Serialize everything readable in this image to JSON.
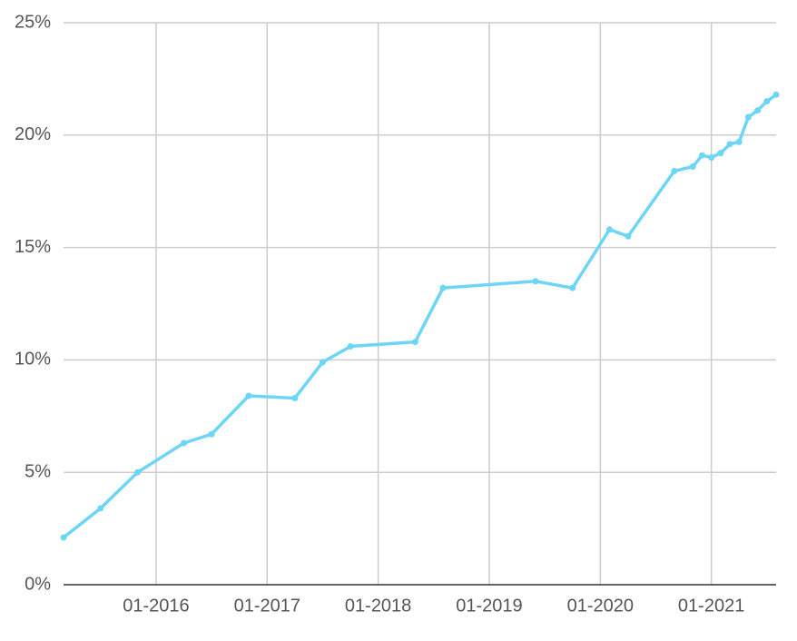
{
  "chart_data": {
    "type": "line",
    "x": [
      "2015-03",
      "2015-07",
      "2015-11",
      "2016-04",
      "2016-07",
      "2016-11",
      "2017-04",
      "2017-07",
      "2017-10",
      "2018-05",
      "2018-08",
      "2019-06",
      "2019-10",
      "2020-02",
      "2020-04",
      "2020-09",
      "2020-11",
      "2020-12",
      "2021-01",
      "2021-02",
      "2021-03",
      "2021-04",
      "2021-05",
      "2021-06",
      "2021-07",
      "2021-08"
    ],
    "series": [
      {
        "color": "#6dd5f5",
        "values": [
          2.1,
          3.4,
          5.0,
          6.3,
          6.7,
          8.4,
          8.3,
          9.9,
          10.6,
          10.8,
          13.2,
          13.5,
          13.2,
          15.8,
          15.5,
          18.4,
          18.6,
          19.1,
          19.0,
          19.2,
          19.6,
          19.7,
          20.8,
          21.1,
          21.5,
          21.8
        ]
      }
    ],
    "xlim": [
      "2015-03",
      "2021-08"
    ],
    "xticks": [
      {
        "value": "2016-01",
        "label": "01-2016"
      },
      {
        "value": "2017-01",
        "label": "01-2017"
      },
      {
        "value": "2018-01",
        "label": "01-2018"
      },
      {
        "value": "2019-01",
        "label": "01-2019"
      },
      {
        "value": "2020-01",
        "label": "01-2020"
      },
      {
        "value": "2021-01",
        "label": "01-2021"
      }
    ],
    "ylim": [
      0,
      25
    ],
    "yticks": [
      {
        "value": 0,
        "label": "0%"
      },
      {
        "value": 5,
        "label": "5%"
      },
      {
        "value": 10,
        "label": "10%"
      },
      {
        "value": 15,
        "label": "15%"
      },
      {
        "value": 20,
        "label": "20%"
      },
      {
        "value": 25,
        "label": "25%"
      }
    ],
    "grid": true
  }
}
